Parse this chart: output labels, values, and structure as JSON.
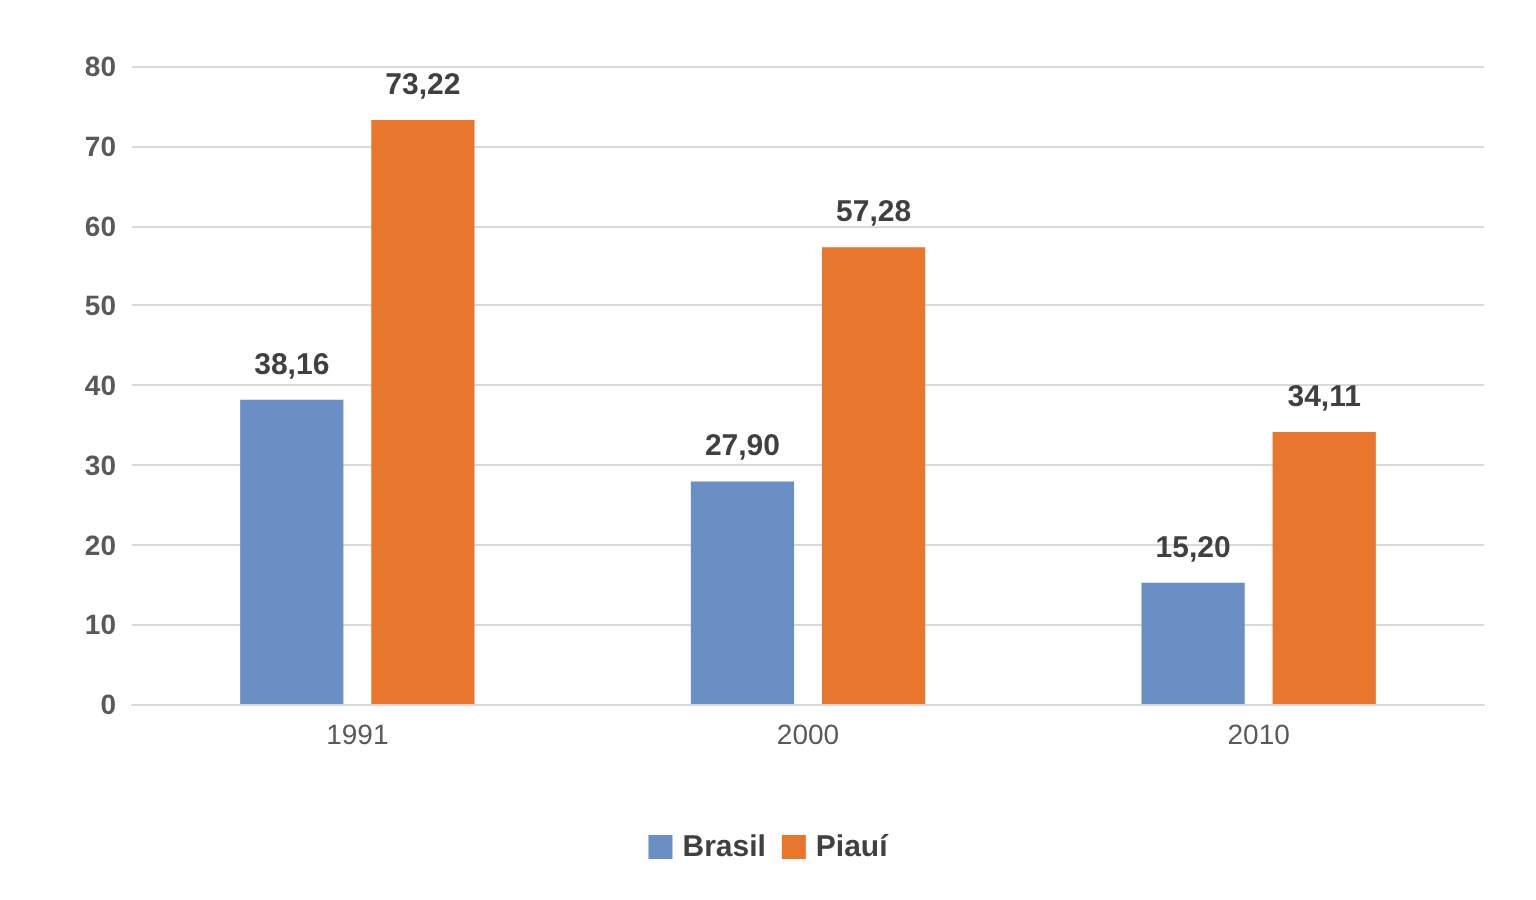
{
  "chart_data": {
    "type": "bar",
    "categories": [
      "1991",
      "2000",
      "2010"
    ],
    "series": [
      {
        "name": "Brasil",
        "color": "#6a8fc4",
        "values": [
          38.16,
          27.9,
          15.2
        ],
        "value_labels": [
          "38,16",
          "27,90",
          "15,20"
        ]
      },
      {
        "name": "Piauí",
        "color": "#e8762d",
        "values": [
          73.22,
          57.28,
          34.11
        ],
        "value_labels": [
          "73,22",
          "57,28",
          "34,11"
        ]
      }
    ],
    "ylim": [
      0,
      80
    ],
    "yticks": [
      0,
      10,
      20,
      30,
      40,
      50,
      60,
      70,
      80
    ],
    "grid": "y",
    "legend": "bottom"
  }
}
